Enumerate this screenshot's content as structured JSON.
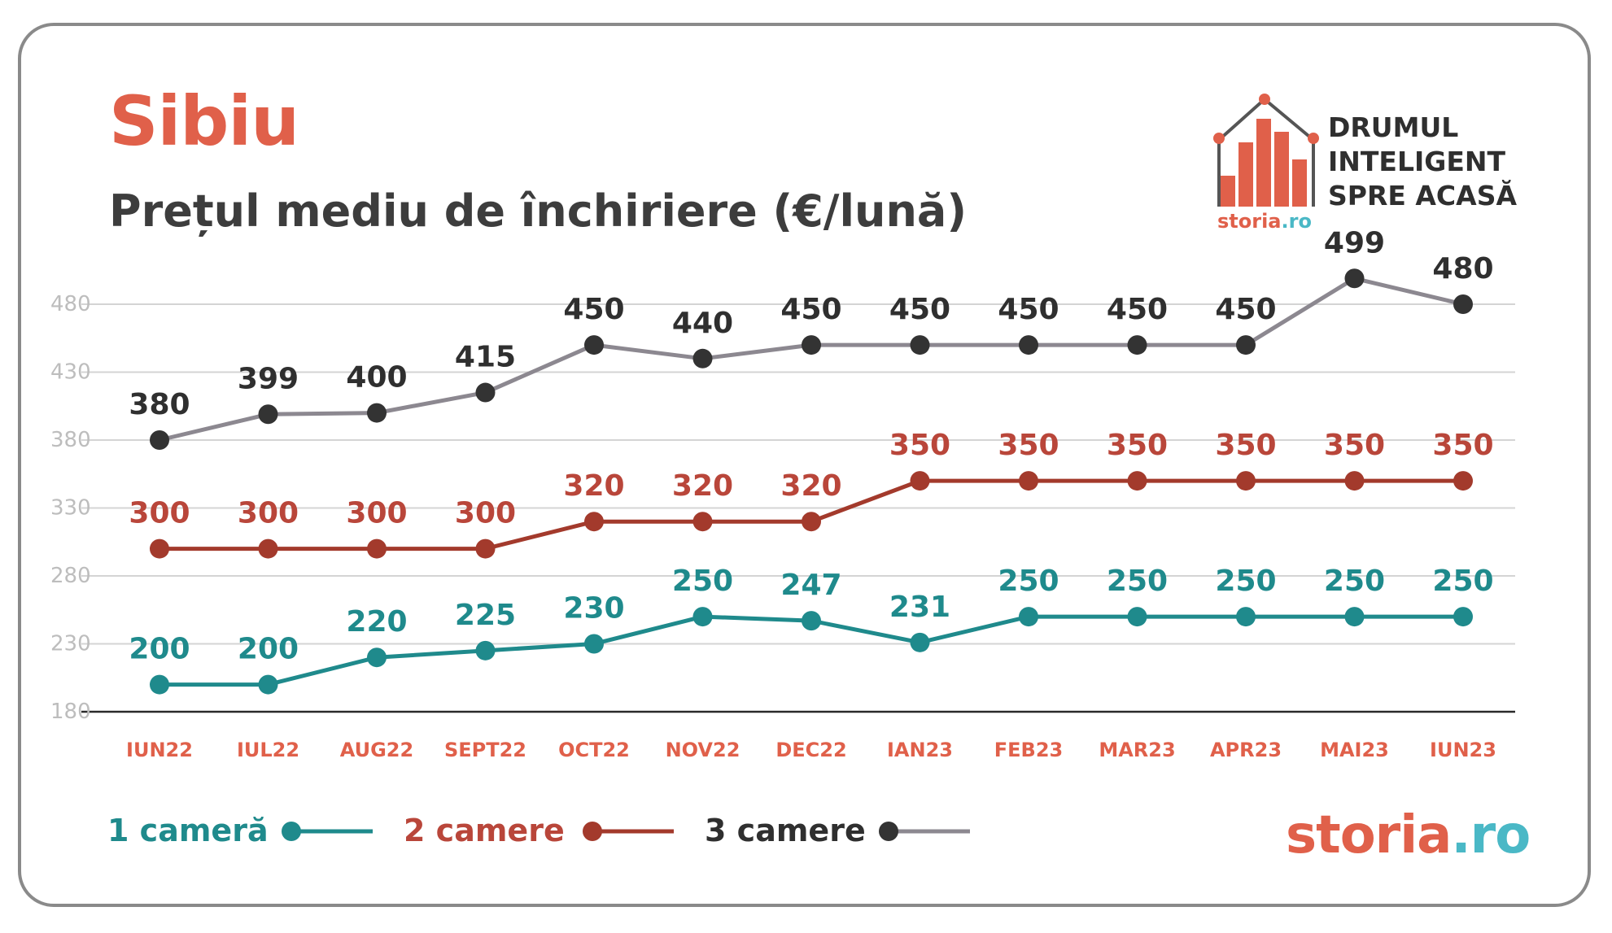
{
  "title": "Sibiu",
  "subtitle": "Prețul mediu de închiriere (€/lună)",
  "brand": {
    "tagline": [
      "DRUMUL",
      "INTELIGENT",
      "SPRE ACASĂ"
    ],
    "logo_main": "storia",
    "logo_tld": ".ro"
  },
  "colors": {
    "accent": "#e0604a",
    "one_room": "#1f8a8c",
    "two_rooms": "#a33a2c",
    "three_rooms_line": "#8c8890",
    "three_rooms_dot": "#333333",
    "two_rooms_label": "#b9463a",
    "three_rooms_label": "#2f2f2f",
    "gridline": "#d4d4d4",
    "tick_label": "#bdbdbd",
    "category_label": "#e0604a"
  },
  "chart_data": {
    "type": "line",
    "title": "Sibiu",
    "subtitle": "Prețul mediu de închiriere (€/lună)",
    "categories": [
      "IUN22",
      "IUL22",
      "AUG22",
      "SEPT22",
      "OCT22",
      "NOV22",
      "DEC22",
      "IAN23",
      "FEB23",
      "MAR23",
      "APR23",
      "MAI23",
      "IUN23"
    ],
    "y_ticks": [
      180,
      230,
      280,
      330,
      380,
      430,
      480
    ],
    "ylim": [
      180,
      499
    ],
    "grid": true,
    "legend_position": "bottom-left",
    "data_labels": true,
    "series": [
      {
        "name": "1 cameră",
        "values": [
          200,
          200,
          220,
          225,
          230,
          250,
          247,
          231,
          250,
          250,
          250,
          250,
          250
        ]
      },
      {
        "name": "2 camere",
        "values": [
          300,
          300,
          300,
          300,
          320,
          320,
          320,
          350,
          350,
          350,
          350,
          350,
          350
        ]
      },
      {
        "name": "3 camere",
        "values": [
          380,
          399,
          400,
          415,
          450,
          440,
          450,
          450,
          450,
          450,
          450,
          499,
          480
        ]
      }
    ]
  }
}
